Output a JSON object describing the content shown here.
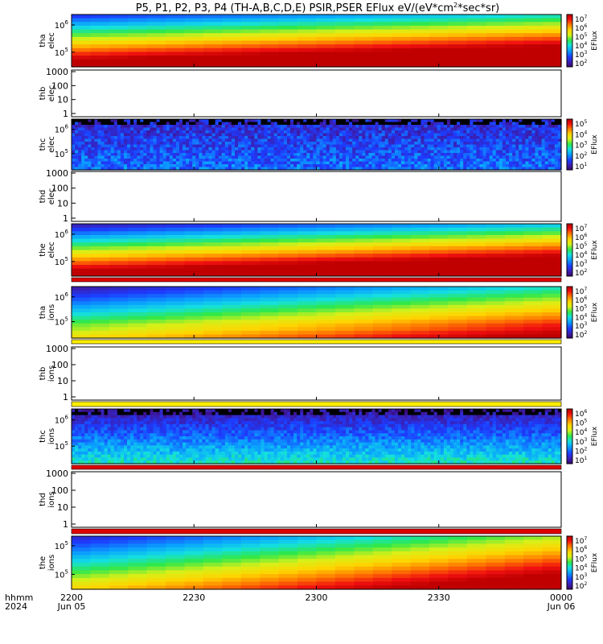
{
  "title": "P5, P1, P2, P3, P4 (TH-A,B,C,D,E) PSIR,PSER EFlux eV/(eV*cm",
  "title_sup": "2",
  "title_tail": "*sec*sr)",
  "colorbar_label": "EFlux",
  "time_axis": {
    "label_top": "hhmm",
    "label_bottom": "2024",
    "ticks": [
      {
        "text": "2200",
        "sub": "Jun 05",
        "frac": 0.0
      },
      {
        "text": "2230",
        "sub": "",
        "frac": 0.25
      },
      {
        "text": "2300",
        "sub": "",
        "frac": 0.5
      },
      {
        "text": "2330",
        "sub": "",
        "frac": 0.75
      },
      {
        "text": "0000",
        "sub": "Jun 06",
        "frac": 1.0
      }
    ]
  },
  "chart_data": {
    "type": "heatmap",
    "x_range": [
      "2024-06-05 22:00",
      "2024-06-06 00:00"
    ],
    "panels": [
      {
        "label1": "tha",
        "label2": "elec",
        "kind": "spec",
        "pattern": "elec",
        "yticks": [
          {
            "base": "10",
            "exp": "6",
            "pos": 0.2
          },
          {
            "base": "10",
            "exp": "5",
            "pos": 0.72
          }
        ],
        "cbar": [
          "7",
          "6",
          "5",
          "4",
          "3",
          "2"
        ]
      },
      {
        "label1": "thb",
        "label2": "elec",
        "kind": "empty",
        "yticks_plain": [
          "1000",
          "100",
          "10",
          "1"
        ],
        "band": "none"
      },
      {
        "label1": "thc",
        "label2": "elec",
        "kind": "spec",
        "pattern": "noise_elec",
        "yticks": [
          {
            "base": "10",
            "exp": "6",
            "pos": 0.2
          },
          {
            "base": "10",
            "exp": "5",
            "pos": 0.68
          }
        ],
        "cbar": [
          "5",
          "4",
          "3",
          "2",
          "1"
        ]
      },
      {
        "label1": "thd",
        "label2": "elec",
        "kind": "empty",
        "yticks_plain": [
          "1000",
          "100",
          "10",
          "1"
        ],
        "band": "none"
      },
      {
        "label1": "the",
        "label2": "elec",
        "kind": "spec",
        "pattern": "elec_e",
        "yticks": [
          {
            "base": "10",
            "exp": "6",
            "pos": 0.2
          },
          {
            "base": "10",
            "exp": "5",
            "pos": 0.72
          }
        ],
        "cbar": [
          "7",
          "6",
          "5",
          "4",
          "3",
          "2"
        ]
      },
      {
        "label1": "tha",
        "label2": "ions",
        "kind": "spec",
        "pattern": "ions_a",
        "yticks": [
          {
            "base": "10",
            "exp": "6",
            "pos": 0.2
          },
          {
            "base": "10",
            "exp": "5",
            "pos": 0.68
          }
        ],
        "cbar": [
          "7",
          "6",
          "5",
          "4",
          "3",
          "2"
        ]
      },
      {
        "label1": "thb",
        "label2": "ions",
        "kind": "empty",
        "yticks_plain": [
          "1000",
          "100",
          "10",
          "1"
        ],
        "band": "yellow"
      },
      {
        "label1": "thc",
        "label2": "ions",
        "kind": "spec",
        "pattern": "noise_ions",
        "yticks": [
          {
            "base": "10",
            "exp": "6",
            "pos": 0.2
          },
          {
            "base": "10",
            "exp": "5",
            "pos": 0.68
          }
        ],
        "cbar": [
          "6",
          "5",
          "4",
          "3",
          "2",
          "1"
        ]
      },
      {
        "label1": "thd",
        "label2": "ions",
        "kind": "empty",
        "yticks_plain": [
          "1000",
          "100",
          "10",
          "1"
        ],
        "band": "red"
      },
      {
        "label1": "the",
        "label2": "ions",
        "kind": "spec",
        "pattern": "ions_e",
        "yticks": [
          {
            "base": "10",
            "exp": "5",
            "pos": 0.18
          },
          {
            "base": "10",
            "exp": "5",
            "pos": 0.72
          }
        ],
        "cbar": [
          "7",
          "6",
          "5",
          "4",
          "3",
          "2"
        ]
      }
    ]
  }
}
